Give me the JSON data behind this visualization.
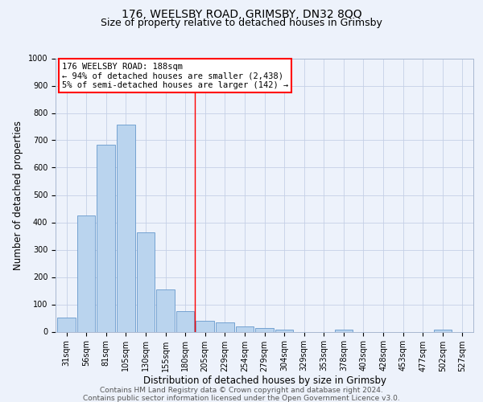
{
  "title": "176, WEELSBY ROAD, GRIMSBY, DN32 8QQ",
  "subtitle": "Size of property relative to detached houses in Grimsby",
  "xlabel": "Distribution of detached houses by size in Grimsby",
  "ylabel": "Number of detached properties",
  "bar_labels": [
    "31sqm",
    "56sqm",
    "81sqm",
    "105sqm",
    "130sqm",
    "155sqm",
    "180sqm",
    "205sqm",
    "229sqm",
    "254sqm",
    "279sqm",
    "304sqm",
    "329sqm",
    "353sqm",
    "378sqm",
    "403sqm",
    "428sqm",
    "453sqm",
    "477sqm",
    "502sqm",
    "527sqm"
  ],
  "bar_values": [
    52,
    425,
    685,
    757,
    362,
    153,
    75,
    40,
    33,
    20,
    12,
    8,
    0,
    0,
    8,
    0,
    0,
    0,
    0,
    8,
    0
  ],
  "bar_color": "#bad4ee",
  "bar_edge_color": "#6699cc",
  "vline_x": 6.5,
  "vline_color": "red",
  "ylim": [
    0,
    1000
  ],
  "yticks": [
    0,
    100,
    200,
    300,
    400,
    500,
    600,
    700,
    800,
    900,
    1000
  ],
  "annotation_title": "176 WEELSBY ROAD: 188sqm",
  "annotation_line1": "← 94% of detached houses are smaller (2,438)",
  "annotation_line2": "5% of semi-detached houses are larger (142) →",
  "annotation_box_color": "#ffffff",
  "annotation_border_color": "red",
  "footer_line1": "Contains HM Land Registry data © Crown copyright and database right 2024.",
  "footer_line2": "Contains public sector information licensed under the Open Government Licence v3.0.",
  "bg_color": "#edf2fb",
  "plot_bg_color": "#edf2fb",
  "grid_color": "#c5d0e6",
  "title_fontsize": 10,
  "subtitle_fontsize": 9,
  "axis_label_fontsize": 8.5,
  "tick_fontsize": 7,
  "annotation_fontsize": 7.5,
  "footer_fontsize": 6.5
}
